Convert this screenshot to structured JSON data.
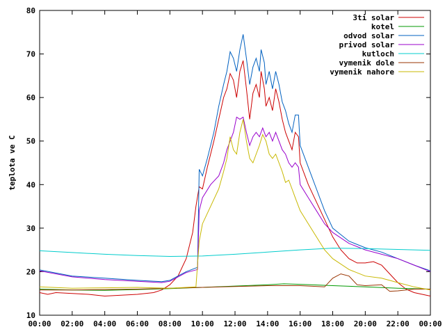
{
  "chart_data": {
    "type": "line",
    "title": "",
    "xlabel": "",
    "ylabel": "teplota ve C",
    "xlim": [
      0,
      24
    ],
    "ylim": [
      10,
      80
    ],
    "grid": false,
    "legend_position": "top-right",
    "x_tick_labels": [
      "00:00",
      "02:00",
      "04:00",
      "06:00",
      "08:00",
      "10:00",
      "12:00",
      "14:00",
      "16:00",
      "18:00",
      "20:00",
      "22:00",
      "00:00"
    ],
    "y_tick_labels": [
      "10",
      "20",
      "30",
      "40",
      "50",
      "60",
      "70",
      "80"
    ],
    "series": [
      {
        "name": "3ti solar",
        "color": "#cc0000",
        "points": [
          [
            0,
            15.2
          ],
          [
            0.5,
            14.8
          ],
          [
            1,
            15.2
          ],
          [
            2,
            15.0
          ],
          [
            3,
            14.8
          ],
          [
            4,
            14.4
          ],
          [
            5,
            14.6
          ],
          [
            6,
            14.8
          ],
          [
            7,
            15.2
          ],
          [
            7.5,
            15.8
          ],
          [
            8,
            17
          ],
          [
            8.5,
            19
          ],
          [
            9,
            23
          ],
          [
            9.4,
            29
          ],
          [
            9.6,
            35
          ],
          [
            9.8,
            39.5
          ],
          [
            10,
            39
          ],
          [
            10.3,
            44
          ],
          [
            10.7,
            50
          ],
          [
            11,
            55
          ],
          [
            11.3,
            60
          ],
          [
            11.5,
            62
          ],
          [
            11.7,
            65.5
          ],
          [
            11.9,
            64
          ],
          [
            12.1,
            60
          ],
          [
            12.3,
            66
          ],
          [
            12.5,
            68.5
          ],
          [
            12.7,
            62
          ],
          [
            12.9,
            55
          ],
          [
            13.1,
            61
          ],
          [
            13.3,
            63
          ],
          [
            13.5,
            60
          ],
          [
            13.6,
            66
          ],
          [
            13.8,
            62
          ],
          [
            13.9,
            58
          ],
          [
            14.1,
            60
          ],
          [
            14.3,
            57
          ],
          [
            14.5,
            62
          ],
          [
            14.7,
            59
          ],
          [
            14.9,
            55
          ],
          [
            15.1,
            52
          ],
          [
            15.3,
            50
          ],
          [
            15.5,
            48
          ],
          [
            15.7,
            52
          ],
          [
            15.9,
            51
          ],
          [
            16,
            45
          ],
          [
            16.5,
            40
          ],
          [
            17,
            36
          ],
          [
            17.5,
            32
          ],
          [
            18,
            28
          ],
          [
            18.5,
            25
          ],
          [
            19,
            23
          ],
          [
            19.5,
            22
          ],
          [
            20,
            22
          ],
          [
            20.5,
            22.3
          ],
          [
            21,
            21.5
          ],
          [
            21.5,
            19.5
          ],
          [
            22,
            17.5
          ],
          [
            22.5,
            16
          ],
          [
            23,
            15.2
          ],
          [
            23.5,
            14.8
          ],
          [
            24,
            14.4
          ]
        ]
      },
      {
        "name": "kotel",
        "color": "#009900",
        "points": [
          [
            0,
            16.0
          ],
          [
            2,
            15.8
          ],
          [
            4,
            15.7
          ],
          [
            6,
            15.9
          ],
          [
            8,
            16.1
          ],
          [
            10,
            16.4
          ],
          [
            12,
            16.7
          ],
          [
            14,
            17.0
          ],
          [
            15,
            17.2
          ],
          [
            16,
            17.1
          ],
          [
            18,
            16.8
          ],
          [
            20,
            16.5
          ],
          [
            22,
            16.2
          ],
          [
            24,
            16.0
          ]
        ]
      },
      {
        "name": "odvod solar",
        "color": "#0060c0",
        "points": [
          [
            0,
            20.4
          ],
          [
            2,
            19.0
          ],
          [
            4,
            18.5
          ],
          [
            6,
            18.0
          ],
          [
            7.5,
            17.7
          ],
          [
            8,
            18
          ],
          [
            9,
            20
          ],
          [
            9.7,
            21
          ],
          [
            9.8,
            43.5
          ],
          [
            10,
            42
          ],
          [
            10.3,
            46
          ],
          [
            10.7,
            52
          ],
          [
            11,
            58
          ],
          [
            11.3,
            63
          ],
          [
            11.5,
            66
          ],
          [
            11.7,
            70.5
          ],
          [
            11.9,
            69
          ],
          [
            12.1,
            66
          ],
          [
            12.3,
            71
          ],
          [
            12.5,
            74.5
          ],
          [
            12.7,
            69
          ],
          [
            12.9,
            63
          ],
          [
            13.1,
            67
          ],
          [
            13.3,
            69
          ],
          [
            13.5,
            66
          ],
          [
            13.6,
            71
          ],
          [
            13.8,
            68
          ],
          [
            13.9,
            63
          ],
          [
            14.1,
            66
          ],
          [
            14.3,
            62
          ],
          [
            14.5,
            66
          ],
          [
            14.7,
            63
          ],
          [
            14.9,
            59
          ],
          [
            15.1,
            57
          ],
          [
            15.3,
            54
          ],
          [
            15.5,
            52
          ],
          [
            15.7,
            56
          ],
          [
            15.9,
            56
          ],
          [
            16,
            49
          ],
          [
            16.5,
            44
          ],
          [
            17,
            39
          ],
          [
            17.5,
            34
          ],
          [
            18,
            30
          ],
          [
            19,
            27
          ],
          [
            20,
            25.5
          ],
          [
            21,
            24.5
          ],
          [
            22,
            23
          ],
          [
            23,
            21.5
          ],
          [
            24,
            20.2
          ]
        ]
      },
      {
        "name": "privod solar",
        "color": "#9900cc",
        "points": [
          [
            0,
            20.2
          ],
          [
            2,
            18.8
          ],
          [
            4,
            18.2
          ],
          [
            6,
            17.8
          ],
          [
            7.5,
            17.5
          ],
          [
            8,
            17.8
          ],
          [
            9,
            19.8
          ],
          [
            9.7,
            20.5
          ],
          [
            9.8,
            34
          ],
          [
            10,
            37
          ],
          [
            10.5,
            40
          ],
          [
            11,
            42
          ],
          [
            11.3,
            45
          ],
          [
            11.5,
            48
          ],
          [
            11.7,
            50
          ],
          [
            11.9,
            52
          ],
          [
            12.1,
            55.5
          ],
          [
            12.3,
            55
          ],
          [
            12.5,
            55.5
          ],
          [
            12.7,
            52
          ],
          [
            12.9,
            49
          ],
          [
            13.1,
            51
          ],
          [
            13.3,
            52
          ],
          [
            13.5,
            51
          ],
          [
            13.7,
            53
          ],
          [
            13.9,
            51
          ],
          [
            14.1,
            52
          ],
          [
            14.3,
            50
          ],
          [
            14.5,
            52
          ],
          [
            14.7,
            50
          ],
          [
            14.9,
            48
          ],
          [
            15.1,
            47
          ],
          [
            15.3,
            45
          ],
          [
            15.5,
            44
          ],
          [
            15.7,
            45
          ],
          [
            15.9,
            44
          ],
          [
            16,
            40
          ],
          [
            16.5,
            37
          ],
          [
            17,
            34
          ],
          [
            17.5,
            31
          ],
          [
            18,
            29
          ],
          [
            19,
            26.5
          ],
          [
            20,
            25
          ],
          [
            21,
            24
          ],
          [
            22,
            23
          ],
          [
            23,
            21.5
          ],
          [
            24,
            20
          ]
        ]
      },
      {
        "name": "kutloch",
        "color": "#00cccc",
        "points": [
          [
            0,
            24.8
          ],
          [
            2,
            24.4
          ],
          [
            4,
            24.0
          ],
          [
            6,
            23.7
          ],
          [
            8,
            23.5
          ],
          [
            10,
            23.6
          ],
          [
            12,
            24.0
          ],
          [
            14,
            24.5
          ],
          [
            16,
            25.0
          ],
          [
            18,
            25.4
          ],
          [
            20,
            25.3
          ],
          [
            22,
            25.1
          ],
          [
            24,
            24.9
          ]
        ]
      },
      {
        "name": "vymenik dole",
        "color": "#993300",
        "points": [
          [
            0,
            15.8
          ],
          [
            2,
            15.8
          ],
          [
            4,
            15.9
          ],
          [
            6,
            16.0
          ],
          [
            8,
            16.2
          ],
          [
            10,
            16.4
          ],
          [
            12,
            16.6
          ],
          [
            14,
            16.8
          ],
          [
            16,
            16.8
          ],
          [
            17.5,
            16.5
          ],
          [
            18,
            18.5
          ],
          [
            18.5,
            19.5
          ],
          [
            19,
            19
          ],
          [
            19.5,
            17
          ],
          [
            20,
            16.8
          ],
          [
            21,
            17
          ],
          [
            21.5,
            15.5
          ],
          [
            22,
            15.6
          ],
          [
            23,
            16
          ],
          [
            24,
            16
          ]
        ]
      },
      {
        "name": "vymenik nahore",
        "color": "#c8b800",
        "points": [
          [
            0,
            16.5
          ],
          [
            2,
            16.2
          ],
          [
            4,
            16.3
          ],
          [
            6,
            16.4
          ],
          [
            8,
            16.2
          ],
          [
            9.6,
            16.5
          ],
          [
            9.8,
            27
          ],
          [
            10,
            31
          ],
          [
            10.5,
            35
          ],
          [
            11,
            39
          ],
          [
            11.3,
            43
          ],
          [
            11.5,
            46
          ],
          [
            11.7,
            51
          ],
          [
            11.9,
            48
          ],
          [
            12.1,
            47
          ],
          [
            12.3,
            52
          ],
          [
            12.5,
            55
          ],
          [
            12.7,
            50
          ],
          [
            12.9,
            46
          ],
          [
            13.1,
            45
          ],
          [
            13.3,
            47
          ],
          [
            13.5,
            49
          ],
          [
            13.7,
            51.5
          ],
          [
            13.9,
            50
          ],
          [
            14.1,
            47
          ],
          [
            14.3,
            46
          ],
          [
            14.5,
            47
          ],
          [
            14.7,
            45
          ],
          [
            14.9,
            43
          ],
          [
            15.1,
            40.5
          ],
          [
            15.3,
            41
          ],
          [
            15.5,
            39
          ],
          [
            15.7,
            37
          ],
          [
            16,
            34
          ],
          [
            16.5,
            31
          ],
          [
            17,
            28
          ],
          [
            17.5,
            25
          ],
          [
            18,
            23
          ],
          [
            19,
            20.5
          ],
          [
            20,
            19
          ],
          [
            21,
            18.5
          ],
          [
            22,
            17.5
          ],
          [
            23,
            16.5
          ],
          [
            24,
            15.8
          ]
        ]
      }
    ]
  }
}
